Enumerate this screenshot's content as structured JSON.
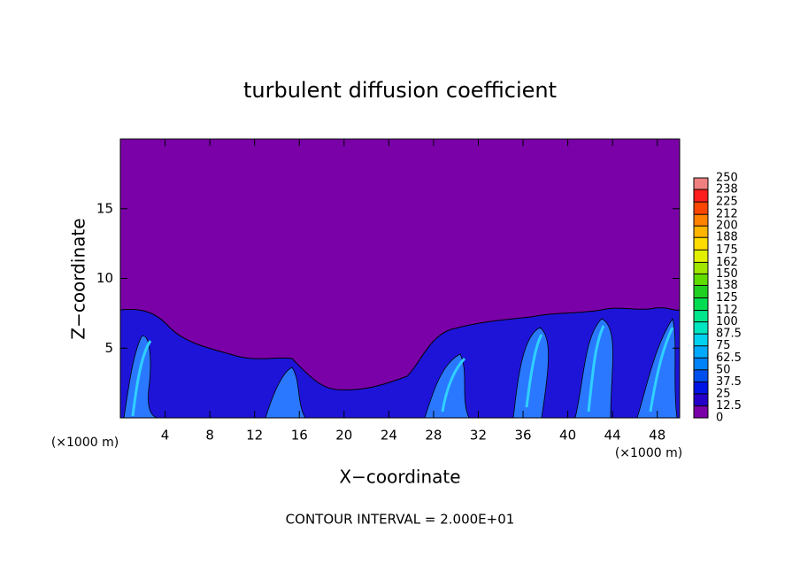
{
  "chart_data": {
    "type": "contour",
    "title": "turbulent diffusion coefficient",
    "xlabel": "X−coordinate",
    "ylabel": "Z−coordinate",
    "x_unit": "(×1000 m)",
    "y_unit": "(×1000 m)",
    "footer": "CONTOUR INTERVAL = 2.000E+01",
    "xlim": [
      0,
      50
    ],
    "xticks": [
      4,
      8,
      12,
      16,
      20,
      24,
      28,
      32,
      36,
      40,
      44,
      48
    ],
    "ylim": [
      0,
      20
    ],
    "yticks": [
      5,
      10,
      15
    ],
    "colorbar": {
      "levels": [
        0,
        12.5,
        25,
        37.5,
        50,
        62.5,
        75,
        87.5,
        100,
        112,
        125,
        138,
        150,
        162,
        175,
        188,
        200,
        212,
        225,
        238,
        250
      ],
      "colors": [
        "#7a00a8",
        "#2400c8",
        "#0014e6",
        "#0050f0",
        "#0082f8",
        "#00aaff",
        "#00d2f0",
        "#00e6c0",
        "#00e68c",
        "#00dc50",
        "#20d020",
        "#60dc00",
        "#a0e600",
        "#e0f000",
        "#ffdc00",
        "#ffb400",
        "#ff8200",
        "#ff4600",
        "#ff1e1e",
        "#f08080"
      ]
    }
  }
}
